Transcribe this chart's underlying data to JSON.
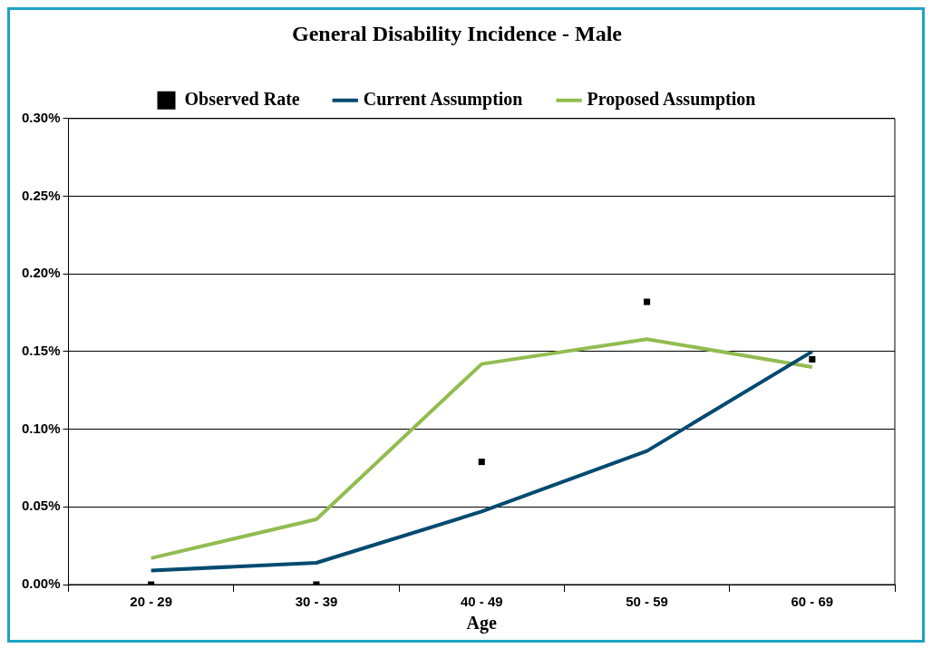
{
  "chart_data": {
    "type": "line",
    "title": "General Disability Incidence - Male",
    "xlabel": "Age",
    "categories": [
      "20 - 29",
      "30 - 39",
      "40 - 49",
      "50 - 59",
      "60 - 69"
    ],
    "series": [
      {
        "name": "Observed Rate",
        "type": "scatter",
        "color": "#000000",
        "marker": "square",
        "values": [
          0,
          0,
          0.079,
          0.182,
          0.145
        ]
      },
      {
        "name": "Current Assumption",
        "color": "#004a70",
        "marker": "none",
        "values": [
          0.009,
          0.014,
          0.047,
          0.086,
          0.15
        ]
      },
      {
        "name": "Proposed Assumption",
        "color": "#92bc50",
        "marker": "none",
        "values": [
          0.017,
          0.042,
          0.142,
          0.158,
          0.14
        ]
      }
    ],
    "ylim": [
      0,
      0.3
    ],
    "yticks": [
      {
        "value": 0,
        "label": "0.00%"
      },
      {
        "value": 0.05,
        "label": "0.05%"
      },
      {
        "value": 0.1,
        "label": "0.10%"
      },
      {
        "value": 0.15,
        "label": "0.15%"
      },
      {
        "value": 0.2,
        "label": "0.20%"
      },
      {
        "value": 0.25,
        "label": "0.25%"
      },
      {
        "value": 0.3,
        "label": "0.30%"
      }
    ],
    "grid": "y",
    "legend": "top"
  }
}
